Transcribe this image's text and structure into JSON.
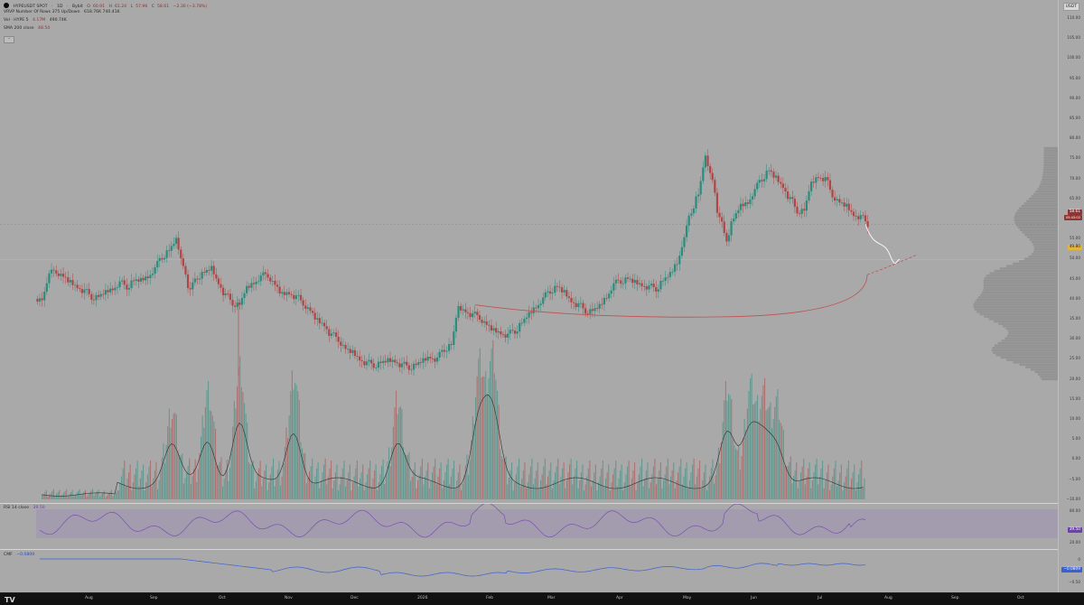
{
  "header": {
    "symbol_line": {
      "symbol": "HYPEUSDT SPOT",
      "sep1": "·",
      "interval": "1D",
      "sep2": "·",
      "exchange": "Bybit",
      "o": "60.91",
      "h": "61.24",
      "l": "57.96",
      "c": "58.61",
      "change": "−2.30 (−3.78%)"
    },
    "vrvp_line": "VRVP Number Of Rows 375 Up/Down",
    "vrvp_values": "618.76K  740.41K",
    "vol_line": {
      "label": "Vol · HYPE 5",
      "v1": "4.17M",
      "v2": "490.74K"
    },
    "sma_line": {
      "label": "SMA 200 close",
      "value": "48.54"
    },
    "collapse_icon": "chevron-up-icon"
  },
  "price_scale": {
    "currency_button": "USDT",
    "ticks": [
      "110.00",
      "105.00",
      "100.00",
      "95.00",
      "90.00",
      "85.00",
      "80.00",
      "75.00",
      "70.00",
      "65.00",
      "60.00",
      "55.00",
      "50.00",
      "45.00",
      "40.00",
      "35.00",
      "30.00",
      "25.00",
      "20.00",
      "15.00",
      "10.00",
      "5.00",
      "0.00",
      "−5.00",
      "−10.00"
    ],
    "current_price": "58.61",
    "countdown": "05:43:02",
    "level_tag": "49.80",
    "rsi_value": "39.50",
    "rsi_ticks": [
      "80.00",
      "20.00"
    ],
    "cmf_value": "−0.0809",
    "cmf_ticks": [
      "0",
      "−0.50"
    ]
  },
  "rsi_legend": {
    "label": "RSI 14 close",
    "value": "39.50"
  },
  "cmf_legend": {
    "label": "CMF",
    "value": "−0.0809"
  },
  "time_axis": {
    "labels": [
      "Aug",
      "Sep",
      "Oct",
      "Nov",
      "Dec",
      "2026",
      "Feb",
      "Mar",
      "Apr",
      "May",
      "Jun",
      "Jul",
      "Aug",
      "Sep",
      "Oct"
    ],
    "logo": "TV"
  },
  "colors": {
    "up": "#2a8c7c",
    "down": "#b04545",
    "background": "#a9a9a9",
    "level_line": "#e0b54a",
    "sma": "#c05050",
    "rsi": "#7a4fb0",
    "cmf": "#3e60d0"
  },
  "chart_data": {
    "type": "candlestick",
    "interval": "1D",
    "close_approx": [
      40.0,
      46.0,
      47.0,
      45.5,
      44.0,
      43.0,
      42.0,
      40.5,
      40.5,
      41.5,
      42.5,
      44.0,
      43.0,
      44.5,
      44.5,
      45.5,
      47.5,
      50.5,
      52.0,
      54.5,
      48.5,
      42.0,
      45.5,
      46.5,
      47.5,
      44.0,
      41.0,
      39.0,
      38.5,
      42.5,
      44.0,
      45.5,
      46.0,
      43.5,
      41.0,
      41.5,
      40.5,
      39.0,
      37.0,
      34.5,
      33.5,
      31.0,
      30.0,
      27.5,
      26.5,
      25.0,
      24.0,
      23.5,
      24.0,
      24.5,
      24.5,
      23.5,
      23.0,
      23.5,
      24.5,
      25.5,
      25.0,
      27.5,
      28.5,
      37.5,
      37.0,
      36.0,
      35.5,
      33.5,
      32.0,
      31.5,
      31.0,
      32.0,
      34.0,
      36.0,
      38.0,
      40.0,
      42.0,
      43.0,
      41.5,
      39.5,
      38.5,
      37.0,
      37.0,
      38.0,
      40.5,
      43.5,
      44.5,
      45.0,
      44.0,
      43.5,
      43.0,
      42.5,
      44.5,
      46.0,
      49.0,
      55.0,
      62.0,
      66.0,
      75.0,
      70.0,
      60.0,
      55.0,
      60.0,
      63.0,
      64.0,
      67.0,
      70.0,
      72.0,
      70.0,
      68.0,
      65.0,
      62.0,
      62.0,
      68.5,
      70.5,
      70.0,
      66.0,
      64.0,
      63.0,
      61.0,
      60.5,
      58.6
    ],
    "projection_path_to": 49.8,
    "horizontal_level": 49.8,
    "last_price": 58.61,
    "indicators": [
      "VRVP",
      "Vol",
      "SMA 200 close",
      "RSI 14 close",
      "CMF"
    ]
  }
}
